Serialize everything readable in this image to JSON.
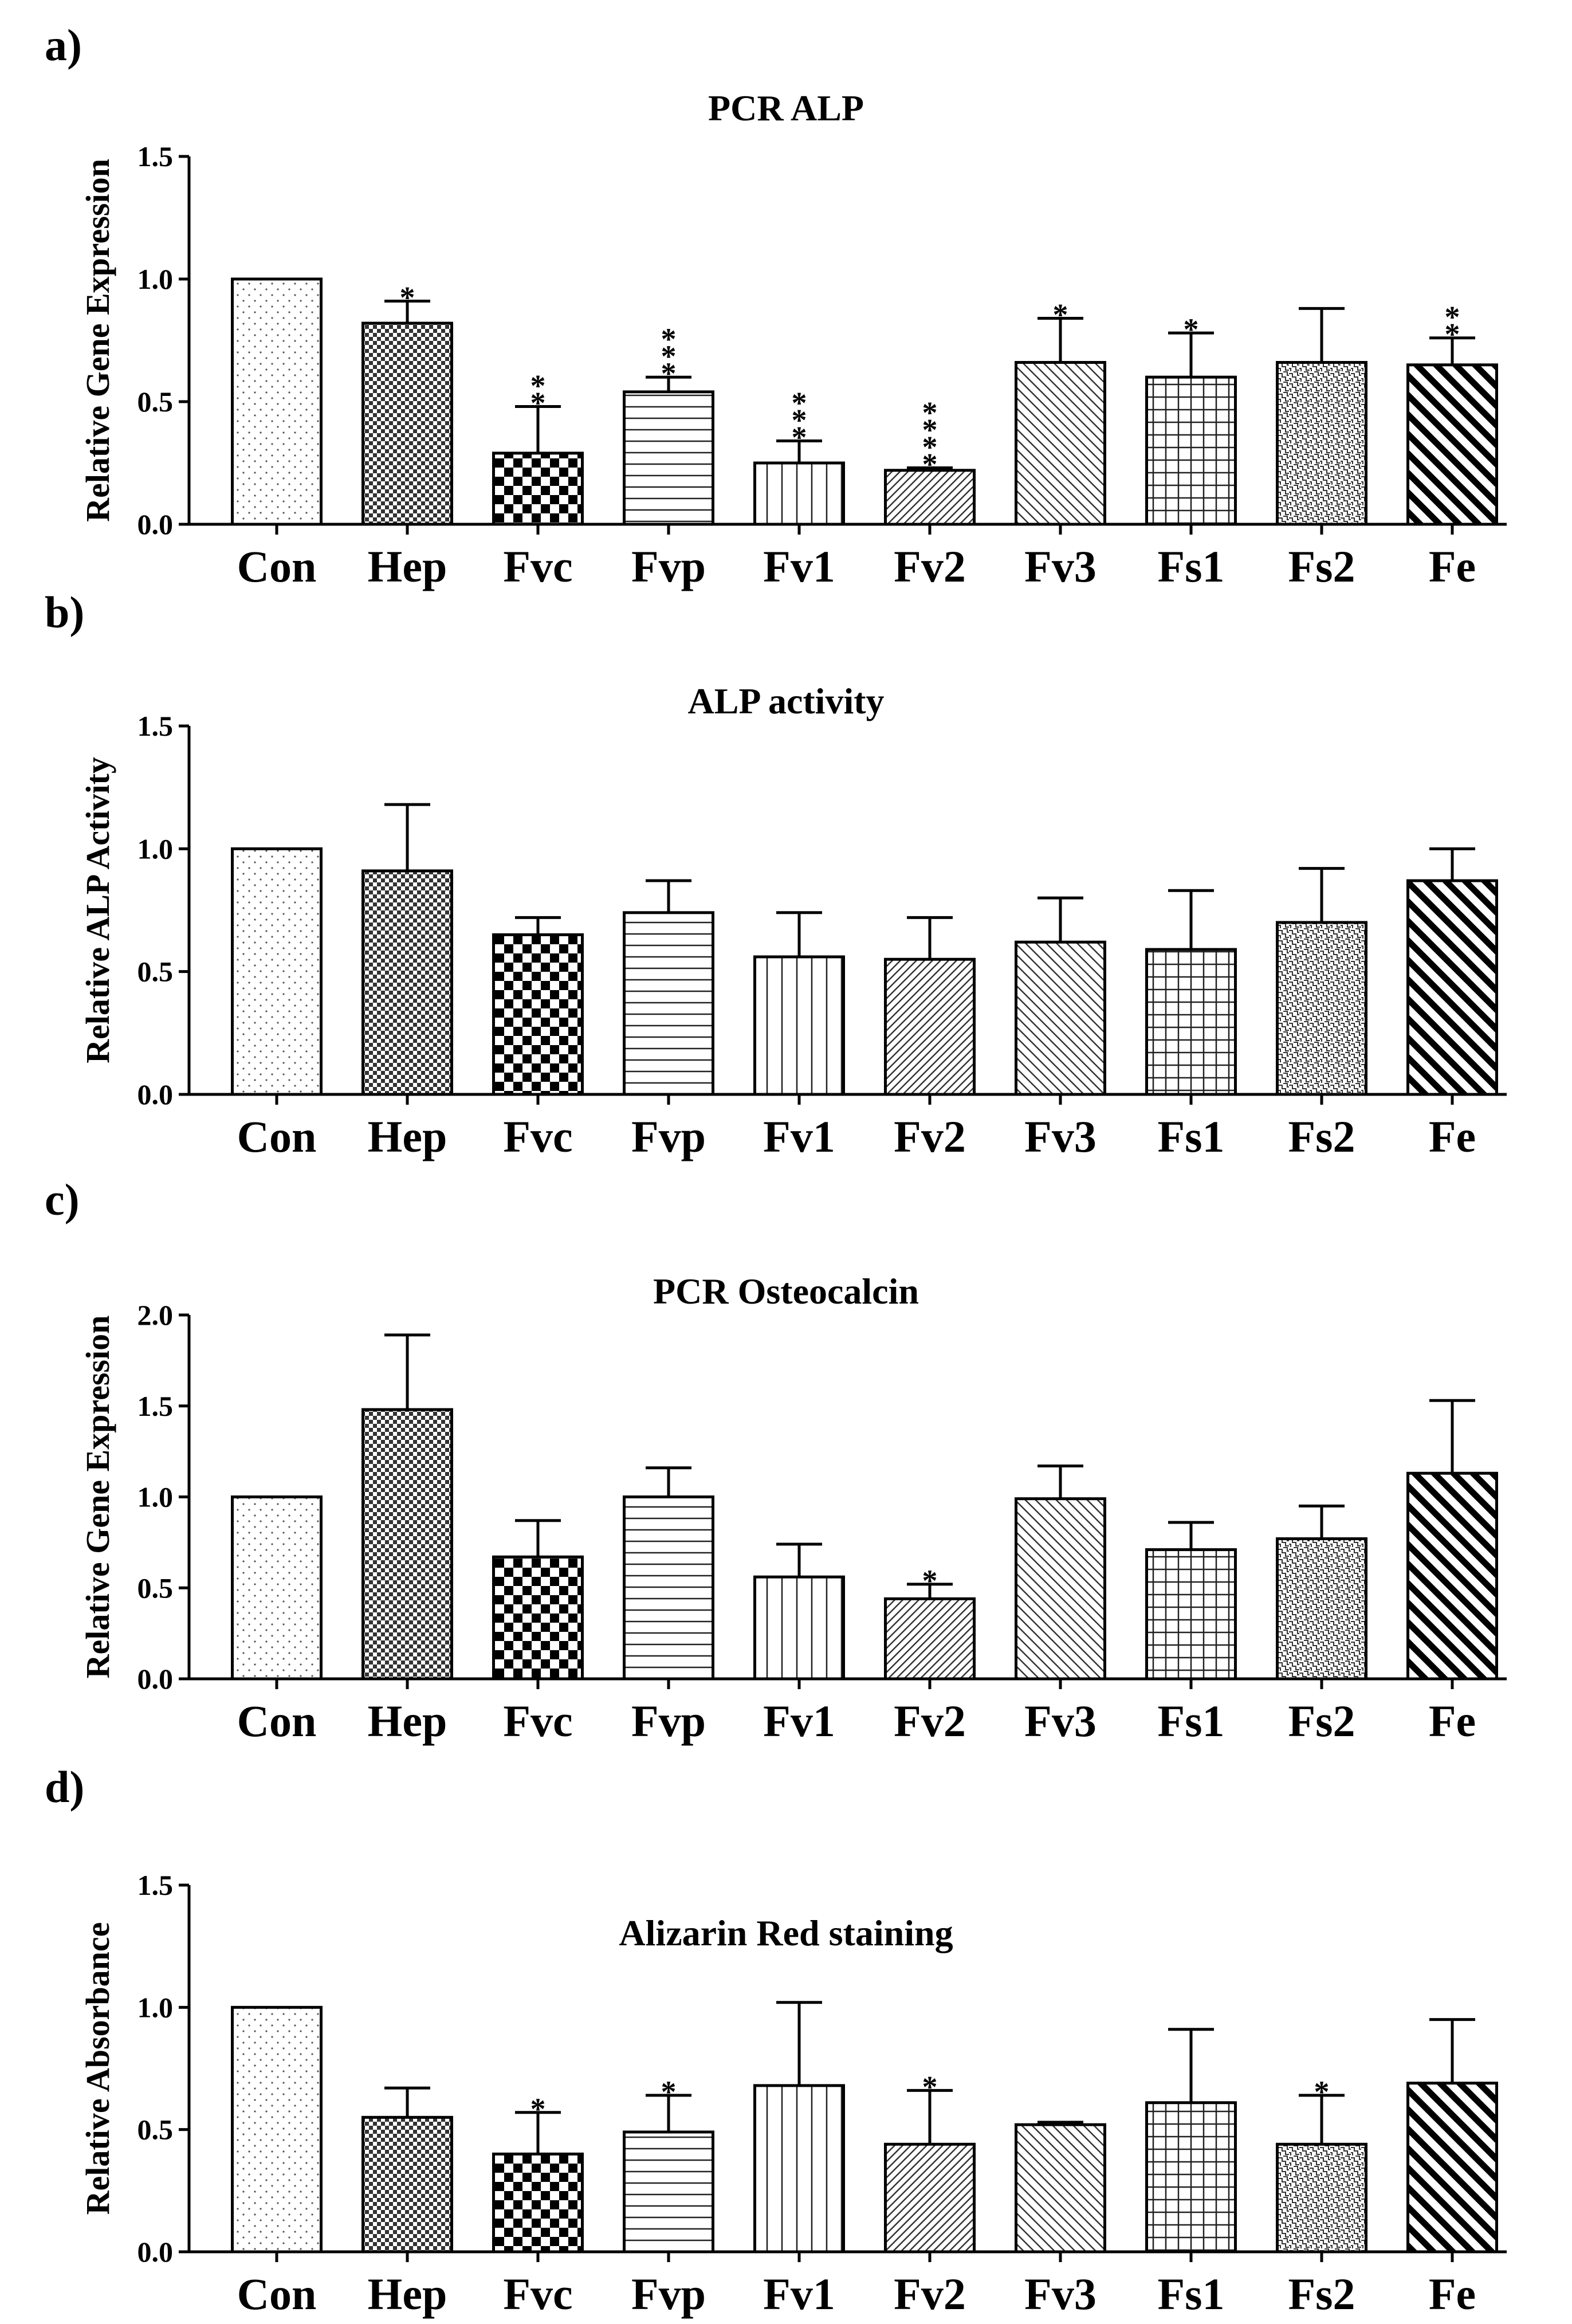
{
  "categories": [
    "Con",
    "Hep",
    "Fvc",
    "Fvp",
    "Fv1",
    "Fv2",
    "Fv3",
    "Fs1",
    "Fs2",
    "Fe"
  ],
  "chart_data": [
    {
      "type": "bar",
      "panel": "a)",
      "title": "PCR ALP",
      "ylabel": "Relative Gene Expression",
      "xlabel": "",
      "categories": [
        "Con",
        "Hep",
        "Fvc",
        "Fvp",
        "Fv1",
        "Fv2",
        "Fv3",
        "Fs1",
        "Fs2",
        "Fe"
      ],
      "values": [
        1.0,
        0.82,
        0.29,
        0.54,
        0.25,
        0.22,
        0.66,
        0.6,
        0.66,
        0.65
      ],
      "errors": [
        0.0,
        0.09,
        0.19,
        0.06,
        0.09,
        0.01,
        0.18,
        0.18,
        0.22,
        0.11
      ],
      "significance": [
        "",
        "*",
        "**",
        "***",
        "***",
        "****",
        "*",
        "*",
        "",
        "**"
      ],
      "yticks": [
        "0.0",
        "0.5",
        "1.0",
        "1.5"
      ],
      "ylim": [
        0,
        1.5
      ],
      "grid": false
    },
    {
      "type": "bar",
      "panel": "b)",
      "title": "ALP activity",
      "ylabel": "Relative ALP Activity",
      "xlabel": "",
      "categories": [
        "Con",
        "Hep",
        "Fvc",
        "Fvp",
        "Fv1",
        "Fv2",
        "Fv3",
        "Fs1",
        "Fs2",
        "Fe"
      ],
      "values": [
        1.0,
        0.91,
        0.65,
        0.74,
        0.56,
        0.55,
        0.62,
        0.59,
        0.7,
        0.87
      ],
      "errors": [
        0.0,
        0.27,
        0.07,
        0.13,
        0.18,
        0.17,
        0.18,
        0.24,
        0.22,
        0.13
      ],
      "significance": [
        "",
        "",
        "",
        "",
        "",
        "",
        "",
        "",
        "",
        ""
      ],
      "yticks": [
        "0.0",
        "0.5",
        "1.0",
        "1.5"
      ],
      "ylim": [
        0,
        1.5
      ],
      "grid": false
    },
    {
      "type": "bar",
      "panel": "c)",
      "title": "PCR Osteocalcin",
      "ylabel": "Relative Gene Expression",
      "xlabel": "",
      "categories": [
        "Con",
        "Hep",
        "Fvc",
        "Fvp",
        "Fv1",
        "Fv2",
        "Fv3",
        "Fs1",
        "Fs2",
        "Fe"
      ],
      "values": [
        1.0,
        1.48,
        0.67,
        1.0,
        0.56,
        0.44,
        0.99,
        0.71,
        0.77,
        1.13
      ],
      "errors": [
        0.0,
        0.41,
        0.2,
        0.16,
        0.18,
        0.08,
        0.18,
        0.15,
        0.18,
        0.4
      ],
      "significance": [
        "",
        "",
        "",
        "",
        "",
        "*",
        "",
        "",
        "",
        ""
      ],
      "yticks": [
        "0.0",
        "0.5",
        "1.0",
        "1.5",
        "2.0"
      ],
      "ylim": [
        0,
        2.0
      ],
      "grid": false
    },
    {
      "type": "bar",
      "panel": "d)",
      "title": "Alizarin Red staining",
      "ylabel": "Relative Absorbance",
      "xlabel": "",
      "categories": [
        "Con",
        "Hep",
        "Fvc",
        "Fvp",
        "Fv1",
        "Fv2",
        "Fv3",
        "Fs1",
        "Fs2",
        "Fe"
      ],
      "values": [
        1.0,
        0.55,
        0.4,
        0.49,
        0.68,
        0.44,
        0.52,
        0.61,
        0.44,
        0.69
      ],
      "errors": [
        0.0,
        0.12,
        0.17,
        0.15,
        0.34,
        0.22,
        0.01,
        0.3,
        0.2,
        0.26
      ],
      "significance": [
        "",
        "",
        "*",
        "*",
        "",
        "*",
        "",
        "",
        "*",
        ""
      ],
      "yticks": [
        "0.0",
        "0.5",
        "1.0",
        "1.5"
      ],
      "ylim": [
        0,
        1.5
      ],
      "grid": false
    }
  ]
}
